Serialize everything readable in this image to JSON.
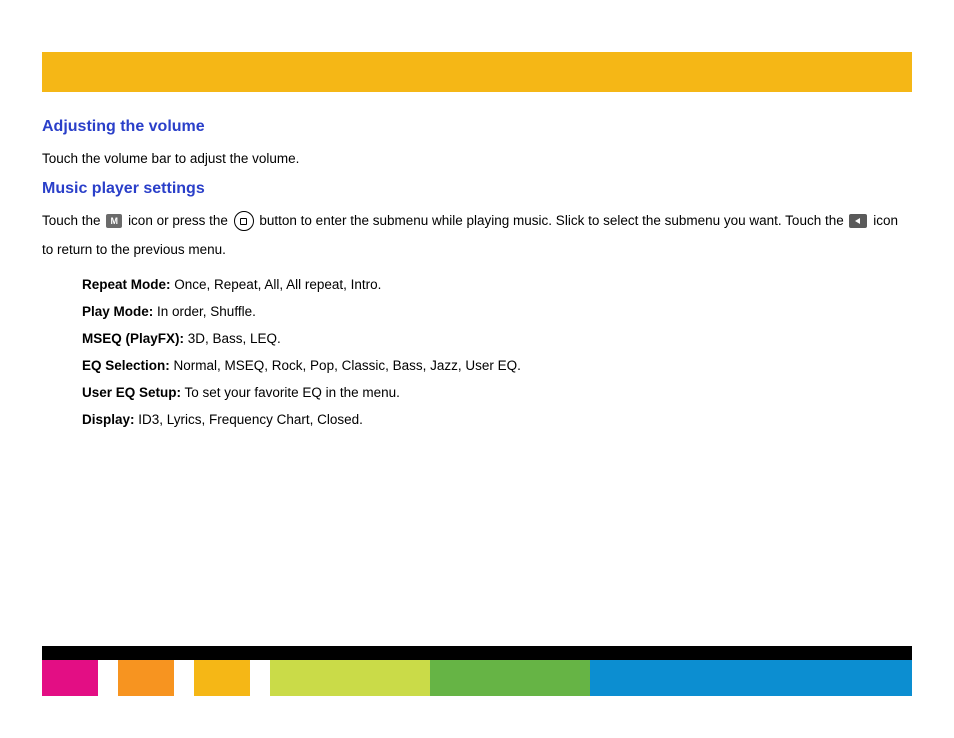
{
  "top_bar_color": "#f5b716",
  "heading_color": "#2a3fc9",
  "section1": {
    "title": "Adjusting the volume",
    "text": "Touch the volume bar to adjust the volume."
  },
  "section2": {
    "title": "Music player settings",
    "p1_part1": "Touch the ",
    "p1_part2": " icon or press the ",
    "p1_part3": "button to enter the submenu while playing music.  Slick to select the submenu you want.  Touch the ",
    "p1_part4": "  icon to return to the previous menu.",
    "m_icon_letter": "M",
    "items": [
      {
        "label": "Repeat Mode:",
        "value": " Once, Repeat, All, All repeat, Intro."
      },
      {
        "label": "Play Mode:",
        "value": " In order, Shuffle."
      },
      {
        "label": "MSEQ (PlayFX):",
        "value": " 3D, Bass, LEQ."
      },
      {
        "label": "EQ Selection:",
        "value": " Normal, MSEQ, Rock, Pop, Classic, Bass, Jazz, User EQ."
      },
      {
        "label": "User EQ Setup:",
        "value": " To set your favorite EQ in the menu."
      },
      {
        "label": "Display:",
        "value": " ID3, Lyrics, Frequency Chart, Closed."
      }
    ]
  },
  "footer_colors": {
    "c1": "#e30e84",
    "c2": "#f79420",
    "c3": "#f5b716",
    "c4": "#cadb48",
    "c5": "#66b445",
    "c6": "#0c8ed1"
  }
}
